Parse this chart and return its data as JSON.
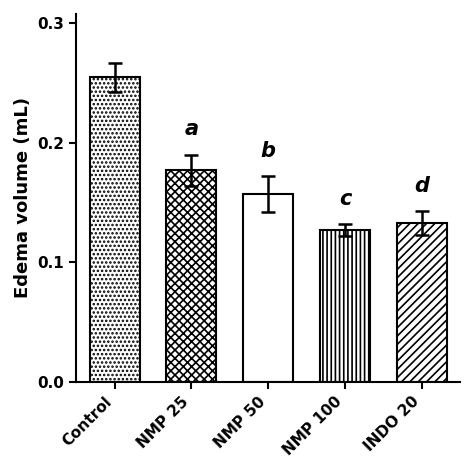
{
  "categories": [
    "Control",
    "NMP 25",
    "NMP 50",
    "NMP 100",
    "INDO 20"
  ],
  "values": [
    0.255,
    0.177,
    0.157,
    0.127,
    0.133
  ],
  "errors": [
    0.012,
    0.013,
    0.015,
    0.005,
    0.01
  ],
  "significance": [
    "",
    "a",
    "b",
    "c",
    "d"
  ],
  "ylabel": "Edema volume (mL)",
  "ylim": [
    0.0,
    0.3
  ],
  "yticks": [
    0.0,
    0.1,
    0.2,
    0.3
  ],
  "hatch_patterns": [
    "....",
    "xxxx",
    "====",
    "||||",
    "////"
  ],
  "bar_edgecolor": "#000000",
  "bar_facecolor": "#ffffff",
  "error_color": "#000000",
  "sig_fontsize": 15,
  "ylabel_fontsize": 13,
  "tick_fontsize": 11,
  "bar_width": 0.65,
  "fig_width": 4.74,
  "fig_height": 4.72
}
